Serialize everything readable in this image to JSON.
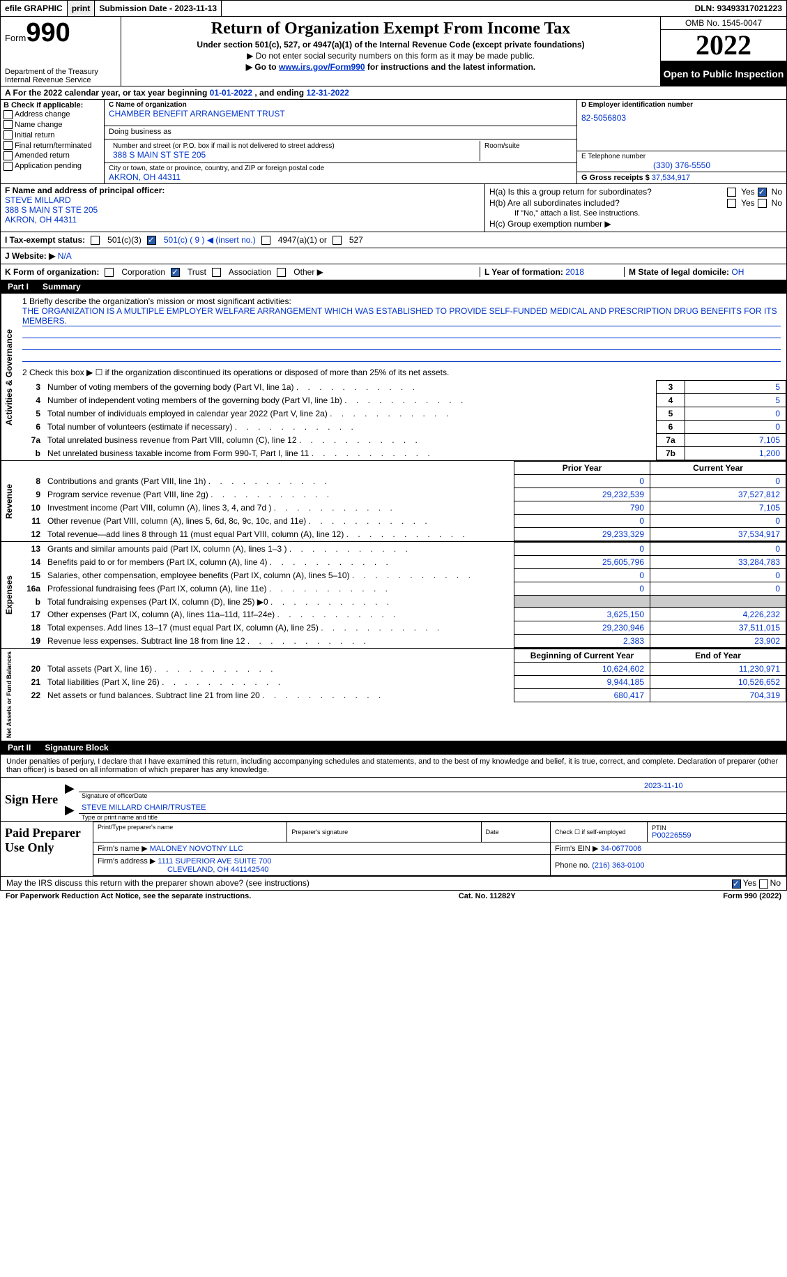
{
  "topbar": {
    "efile": "efile GRAPHIC",
    "print_btn": "print",
    "submission": "Submission Date - 2023-11-13",
    "dln": "DLN: 93493317021223"
  },
  "header": {
    "form_word": "Form",
    "form_num": "990",
    "dept": "Department of the Treasury\nInternal Revenue Service",
    "title": "Return of Organization Exempt From Income Tax",
    "sub": "Under section 501(c), 527, or 4947(a)(1) of the Internal Revenue Code (except private foundations)",
    "line1": "▶ Do not enter social security numbers on this form as it may be made public.",
    "line2_pre": "▶ Go to ",
    "line2_link": "www.irs.gov/Form990",
    "line2_post": " for instructions and the latest information.",
    "omb": "OMB No. 1545-0047",
    "year": "2022",
    "inspection": "Open to Public Inspection"
  },
  "rowA": {
    "text_pre": "A For the 2022 calendar year, or tax year beginning ",
    "begin": "01-01-2022",
    "mid": "   , and ending ",
    "end": "12-31-2022"
  },
  "colB": {
    "header": "B Check if applicable:",
    "opts": [
      "Address change",
      "Name change",
      "Initial return",
      "Final return/terminated",
      "Amended return",
      "Application pending"
    ]
  },
  "colC": {
    "name_lbl": "C Name of organization",
    "name": "CHAMBER BENEFIT ARRANGEMENT TRUST",
    "dba_lbl": "Doing business as",
    "dba": "",
    "street_lbl": "Number and street (or P.O. box if mail is not delivered to street address)",
    "room_lbl": "Room/suite",
    "street": "388 S MAIN ST STE 205",
    "city_lbl": "City or town, state or province, country, and ZIP or foreign postal code",
    "city": "AKRON, OH  44311"
  },
  "colD": {
    "ein_lbl": "D Employer identification number",
    "ein": "82-5056803",
    "phone_lbl": "E Telephone number",
    "phone": "(330) 376-5550",
    "gross_lbl": "G Gross receipts $",
    "gross": "37,534,917"
  },
  "colF": {
    "lbl": "F Name and address of principal officer:",
    "name": "STEVE MILLARD",
    "street": "388 S MAIN ST STE 205",
    "city": "AKRON, OH  44311"
  },
  "colH": {
    "ha_lbl": "H(a)  Is this a group return for subordinates?",
    "hb_lbl": "H(b)  Are all subordinates included?",
    "hb_note": "If \"No,\" attach a list. See instructions.",
    "hc_lbl": "H(c)  Group exemption number ▶",
    "yes": "Yes",
    "no": "No"
  },
  "rowI": {
    "lbl": "I   Tax-exempt status:",
    "o1": "501(c)(3)",
    "o2": "501(c) ( 9 ) ◀ (insert no.)",
    "o3": "4947(a)(1) or",
    "o4": "527"
  },
  "rowJ": {
    "lbl": "J   Website: ▶",
    "val": " N/A"
  },
  "rowK": {
    "lbl": "K Form of organization:",
    "opts": [
      "Corporation",
      "Trust",
      "Association",
      "Other ▶"
    ],
    "L_lbl": "L Year of formation:",
    "L_val": "2018",
    "M_lbl": "M State of legal domicile:",
    "M_val": "OH"
  },
  "part1_hdr": {
    "part": "Part I",
    "title": "Summary"
  },
  "mission": {
    "lbl": "1   Briefly describe the organization's mission or most significant activities:",
    "text": "THE ORGANIZATION IS A MULTIPLE EMPLOYER WELFARE ARRANGEMENT WHICH WAS ESTABLISHED TO PROVIDE SELF-FUNDED MEDICAL AND PRESCRIPTION DRUG BENEFITS FOR ITS MEMBERS."
  },
  "line2": "2    Check this box ▶ ☐  if the organization discontinued its operations or disposed of more than 25% of its net assets.",
  "act_rows": [
    {
      "n": "3",
      "t": "Number of voting members of the governing body (Part VI, line 1a)",
      "box": "3",
      "v": "5"
    },
    {
      "n": "4",
      "t": "Number of independent voting members of the governing body (Part VI, line 1b)",
      "box": "4",
      "v": "5"
    },
    {
      "n": "5",
      "t": "Total number of individuals employed in calendar year 2022 (Part V, line 2a)",
      "box": "5",
      "v": "0"
    },
    {
      "n": "6",
      "t": "Total number of volunteers (estimate if necessary)",
      "box": "6",
      "v": "0"
    },
    {
      "n": "7a",
      "t": "Total unrelated business revenue from Part VIII, column (C), line 12",
      "box": "7a",
      "v": "7,105"
    },
    {
      "n": "b",
      "t": "Net unrelated business taxable income from Form 990-T, Part I, line 11",
      "box": "7b",
      "v": "1,200"
    }
  ],
  "year_hdr": {
    "prior": "Prior Year",
    "current": "Current Year"
  },
  "rev_rows": [
    {
      "n": "8",
      "t": "Contributions and grants (Part VIII, line 1h)",
      "p": "0",
      "c": "0"
    },
    {
      "n": "9",
      "t": "Program service revenue (Part VIII, line 2g)",
      "p": "29,232,539",
      "c": "37,527,812"
    },
    {
      "n": "10",
      "t": "Investment income (Part VIII, column (A), lines 3, 4, and 7d )",
      "p": "790",
      "c": "7,105"
    },
    {
      "n": "11",
      "t": "Other revenue (Part VIII, column (A), lines 5, 6d, 8c, 9c, 10c, and 11e)",
      "p": "0",
      "c": "0"
    },
    {
      "n": "12",
      "t": "Total revenue—add lines 8 through 11 (must equal Part VIII, column (A), line 12)",
      "p": "29,233,329",
      "c": "37,534,917"
    }
  ],
  "exp_rows": [
    {
      "n": "13",
      "t": "Grants and similar amounts paid (Part IX, column (A), lines 1–3 )",
      "p": "0",
      "c": "0"
    },
    {
      "n": "14",
      "t": "Benefits paid to or for members (Part IX, column (A), line 4)",
      "p": "25,605,796",
      "c": "33,284,783"
    },
    {
      "n": "15",
      "t": "Salaries, other compensation, employee benefits (Part IX, column (A), lines 5–10)",
      "p": "0",
      "c": "0"
    },
    {
      "n": "16a",
      "t": "Professional fundraising fees (Part IX, column (A), line 11e)",
      "p": "0",
      "c": "0"
    },
    {
      "n": "b",
      "t": "Total fundraising expenses (Part IX, column (D), line 25) ▶0",
      "p": "",
      "c": "",
      "gray": true
    },
    {
      "n": "17",
      "t": "Other expenses (Part IX, column (A), lines 11a–11d, 11f–24e)",
      "p": "3,625,150",
      "c": "4,226,232"
    },
    {
      "n": "18",
      "t": "Total expenses. Add lines 13–17 (must equal Part IX, column (A), line 25)",
      "p": "29,230,946",
      "c": "37,511,015"
    },
    {
      "n": "19",
      "t": "Revenue less expenses. Subtract line 18 from line 12",
      "p": "2,383",
      "c": "23,902"
    }
  ],
  "net_hdr": {
    "begin": "Beginning of Current Year",
    "end": "End of Year"
  },
  "net_rows": [
    {
      "n": "20",
      "t": "Total assets (Part X, line 16)",
      "p": "10,624,602",
      "c": "11,230,971"
    },
    {
      "n": "21",
      "t": "Total liabilities (Part X, line 26)",
      "p": "9,944,185",
      "c": "10,526,652"
    },
    {
      "n": "22",
      "t": "Net assets or fund balances. Subtract line 21 from line 20",
      "p": "680,417",
      "c": "704,319"
    }
  ],
  "part2_hdr": {
    "part": "Part II",
    "title": "Signature Block"
  },
  "sig_text": "Under penalties of perjury, I declare that I have examined this return, including accompanying schedules and statements, and to the best of my knowledge and belief, it is true, correct, and complete. Declaration of preparer (other than officer) is based on all information of which preparer has any knowledge.",
  "sign": {
    "lbl": "Sign Here",
    "sig_cap": "Signature of officer",
    "date": "2023-11-10",
    "date_cap": "Date",
    "name": "STEVE MILLARD CHAIR/TRUSTEE",
    "name_cap": "Type or print name and title"
  },
  "preparer": {
    "lbl": "Paid Preparer Use Only",
    "h_name": "Print/Type preparer's name",
    "h_sig": "Preparer's signature",
    "h_date": "Date",
    "h_check": "Check ☐ if self-employed",
    "h_ptin": "PTIN",
    "ptin": "P00226559",
    "firm_lbl": "Firm's name    ▶",
    "firm": "MALONEY NOVOTNY LLC",
    "ein_lbl": "Firm's EIN ▶",
    "ein": "34-0677006",
    "addr_lbl": "Firm's address ▶",
    "addr1": "1111 SUPERIOR AVE SUITE 700",
    "addr2": "CLEVELAND, OH  441142540",
    "phone_lbl": "Phone no.",
    "phone": "(216) 363-0100"
  },
  "footer": {
    "q": "May the IRS discuss this return with the preparer shown above? (see instructions)",
    "yes": "Yes",
    "no": "No",
    "paperwork": "For Paperwork Reduction Act Notice, see the separate instructions.",
    "cat": "Cat. No. 11282Y",
    "form": "Form 990 (2022)"
  },
  "vtabs": {
    "activities": "Activities & Governance",
    "revenue": "Revenue",
    "expenses": "Expenses",
    "netassets": "Net Assets or Fund Balances"
  }
}
